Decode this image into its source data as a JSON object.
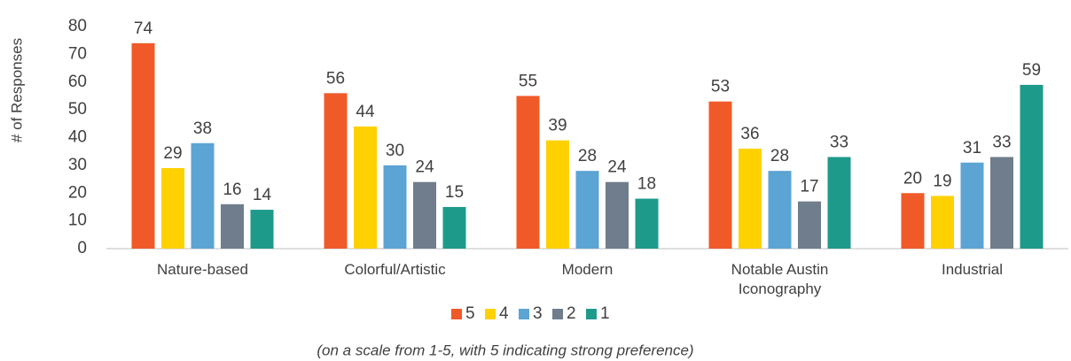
{
  "chart_data": {
    "type": "bar",
    "y_label": "# of Responses",
    "note": "(on a scale from 1-5, with 5 indicating strong preference)",
    "categories": [
      "Nature-based",
      "Colorful/Artistic",
      "Modern",
      "Notable Austin Iconography",
      "Industrial"
    ],
    "series": [
      {
        "name": "5",
        "color": "#f05a28",
        "values": [
          74,
          56,
          55,
          53,
          20
        ]
      },
      {
        "name": "4",
        "color": "#ffd100",
        "values": [
          29,
          44,
          39,
          36,
          19
        ]
      },
      {
        "name": "3",
        "color": "#5ba4d4",
        "values": [
          38,
          30,
          28,
          28,
          31
        ]
      },
      {
        "name": "2",
        "color": "#6f7d8c",
        "values": [
          16,
          24,
          24,
          17,
          33
        ]
      },
      {
        "name": "1",
        "color": "#1e9a8a",
        "values": [
          14,
          15,
          18,
          33,
          59
        ]
      }
    ],
    "ylim": [
      0,
      80
    ],
    "yticks": [
      0,
      10,
      20,
      30,
      40,
      50,
      60,
      70,
      80
    ],
    "grid": false,
    "legend": "bottom"
  }
}
